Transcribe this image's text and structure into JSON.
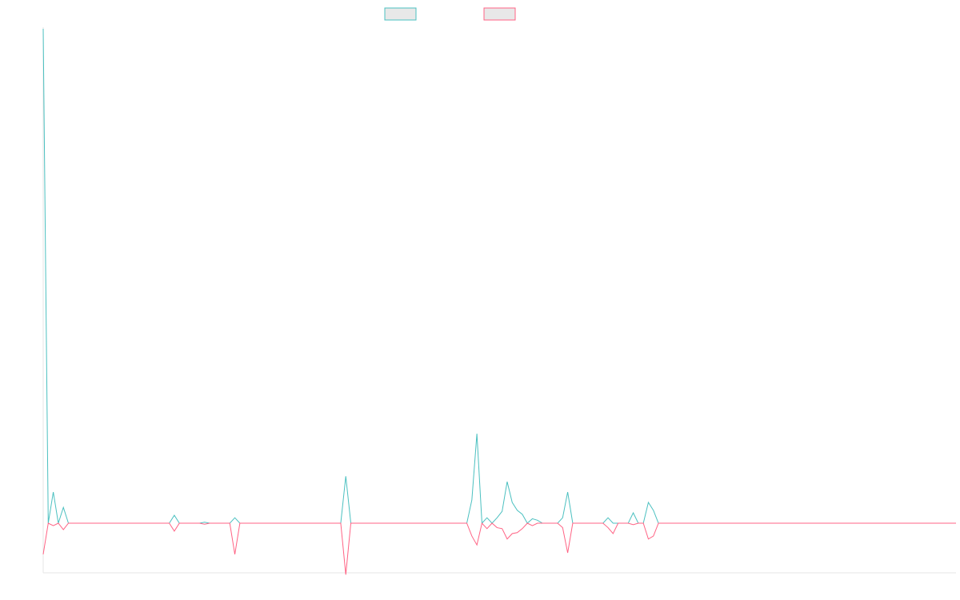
{
  "chart_data": {
    "type": "line",
    "title": "",
    "xlabel": "",
    "ylabel": "",
    "grid": false,
    "legend": "top-center",
    "x_count": 182,
    "ylim": [
      -10,
      100
    ],
    "series": [
      {
        "color": "#4bc0c0",
        "fill": "#e8e8e8",
        "points": [
          [
            0,
            100
          ],
          [
            1,
            0
          ],
          [
            2,
            6.3
          ],
          [
            3,
            0
          ],
          [
            4,
            3.2
          ],
          [
            5,
            0
          ],
          [
            25,
            0
          ],
          [
            26,
            1.6
          ],
          [
            27,
            0
          ],
          [
            31,
            0
          ],
          [
            32,
            0.2
          ],
          [
            33,
            0
          ],
          [
            37,
            0
          ],
          [
            38,
            1.1
          ],
          [
            39,
            0
          ],
          [
            59,
            0
          ],
          [
            60,
            9.5
          ],
          [
            61,
            0
          ],
          [
            84,
            0
          ],
          [
            85,
            4.7
          ],
          [
            86,
            18.1
          ],
          [
            87,
            0
          ],
          [
            88,
            1.1
          ],
          [
            89,
            0
          ],
          [
            90,
            1.1
          ],
          [
            91,
            2.4
          ],
          [
            92,
            8.4
          ],
          [
            93,
            4.2
          ],
          [
            94,
            2.6
          ],
          [
            95,
            1.8
          ],
          [
            96,
            0
          ],
          [
            97,
            0.9
          ],
          [
            98,
            0.6
          ],
          [
            99,
            0
          ],
          [
            102,
            0
          ],
          [
            103,
            1.1
          ],
          [
            104,
            6.3
          ],
          [
            105,
            0
          ],
          [
            111,
            0
          ],
          [
            112,
            1.1
          ],
          [
            113,
            0
          ],
          [
            116,
            0
          ],
          [
            117,
            2.1
          ],
          [
            118,
            0
          ],
          [
            119,
            0
          ],
          [
            120,
            4.2
          ],
          [
            121,
            2.6
          ],
          [
            122,
            0
          ],
          [
            181,
            0
          ]
        ]
      },
      {
        "color": "#ff6384",
        "fill": "#e8e8e8",
        "points": [
          [
            0,
            -6.3
          ],
          [
            1,
            0
          ],
          [
            2,
            -0.5
          ],
          [
            3,
            0
          ],
          [
            4,
            -1.3
          ],
          [
            5,
            0
          ],
          [
            25,
            0
          ],
          [
            26,
            -1.6
          ],
          [
            27,
            0
          ],
          [
            31,
            0
          ],
          [
            32,
            -0.2
          ],
          [
            33,
            0
          ],
          [
            37,
            0
          ],
          [
            38,
            -6.3
          ],
          [
            39,
            0
          ],
          [
            59,
            0
          ],
          [
            60,
            -10.4
          ],
          [
            61,
            0
          ],
          [
            84,
            0
          ],
          [
            85,
            -2.6
          ],
          [
            86,
            -4.4
          ],
          [
            87,
            0
          ],
          [
            88,
            -1.1
          ],
          [
            89,
            0
          ],
          [
            90,
            -0.9
          ],
          [
            91,
            -1.1
          ],
          [
            92,
            -3.2
          ],
          [
            93,
            -2.1
          ],
          [
            94,
            -1.9
          ],
          [
            95,
            -1.1
          ],
          [
            96,
            0
          ],
          [
            97,
            -0.5
          ],
          [
            98,
            0
          ],
          [
            99,
            0
          ],
          [
            102,
            0
          ],
          [
            103,
            -0.9
          ],
          [
            104,
            -6
          ],
          [
            105,
            0
          ],
          [
            111,
            0
          ],
          [
            112,
            -0.9
          ],
          [
            113,
            -2.1
          ],
          [
            114,
            0
          ],
          [
            116,
            0
          ],
          [
            117,
            -0.3
          ],
          [
            118,
            0
          ],
          [
            119,
            0
          ],
          [
            120,
            -3.2
          ],
          [
            121,
            -2.6
          ],
          [
            122,
            0
          ],
          [
            181,
            0
          ]
        ]
      }
    ]
  }
}
